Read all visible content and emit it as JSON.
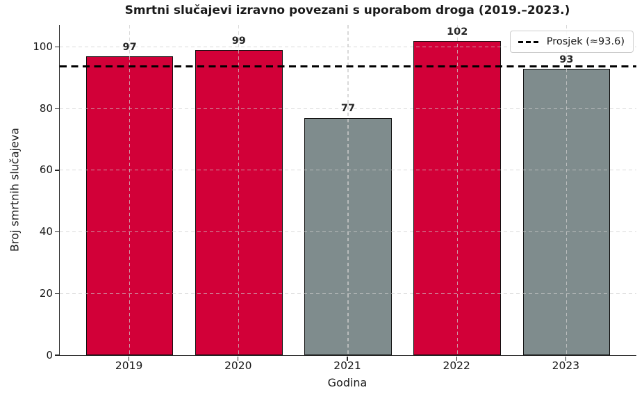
{
  "chart_data": {
    "type": "bar",
    "title": "Smrtni slučajevi izravno povezani s uporabom droga (2019.–2023.)",
    "xlabel": "Godina",
    "ylabel": "Broj smrtnih slučajeva",
    "categories": [
      "2019",
      "2020",
      "2021",
      "2022",
      "2023"
    ],
    "values": [
      97,
      99,
      77,
      102,
      93
    ],
    "bar_colors": [
      "#D20038",
      "#D20038",
      "#7F8C8D",
      "#D20038",
      "#7F8C8D"
    ],
    "bar_edge_color": "#111111",
    "yticks": [
      0,
      20,
      40,
      60,
      80,
      100
    ],
    "ylim": [
      0,
      107.1
    ],
    "grid": true,
    "legend_position": "upper right",
    "average_line": {
      "value": 93.6,
      "label": "Prosjek (≈93.6)",
      "color": "#000000",
      "style": "dashed"
    }
  },
  "colors": {
    "accent_red": "#D20038",
    "neutral_gray": "#7F8C8D",
    "text": "#1a1a1a",
    "grid": "#cccccc",
    "legend_border": "#cccccc",
    "background": "#ffffff"
  }
}
